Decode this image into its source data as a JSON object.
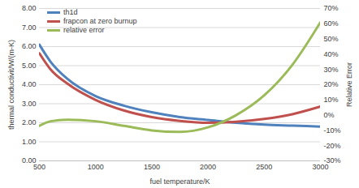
{
  "chart_data": {
    "type": "line",
    "x_label": "fuel temperature/K",
    "y_label": "thermal conductivit/W/(m-K)",
    "y2_label": "Relative Error",
    "x": [
      500,
      600,
      750,
      1000,
      1250,
      1500,
      1750,
      2000,
      2250,
      2500,
      2750,
      3000
    ],
    "series": [
      {
        "name": "th1d",
        "color": "#4f81bd",
        "values": [
          6.1,
          5.2,
          4.3,
          3.4,
          2.9,
          2.55,
          2.3,
          2.15,
          2.0,
          1.9,
          1.85,
          1.8
        ]
      },
      {
        "name": "frapcon at zero burnup",
        "color": "#c0504d",
        "values": [
          5.65,
          4.8,
          4.05,
          3.2,
          2.65,
          2.3,
          2.1,
          2.0,
          2.05,
          2.2,
          2.45,
          2.85
        ]
      },
      {
        "name": "relative error",
        "color": "#9bbb59",
        "axis": "y2",
        "values": [
          -7,
          -4,
          -3,
          -4,
          -7,
          -10,
          -11,
          -8,
          0,
          13,
          33,
          61
        ]
      }
    ],
    "xlim": [
      500,
      3000
    ],
    "xticks": [
      500,
      1000,
      1500,
      2000,
      2500,
      3000
    ],
    "ylim": [
      0,
      8
    ],
    "yticks": [
      {
        "value": 0,
        "label": "0.00"
      },
      {
        "value": 1,
        "label": "1.00"
      },
      {
        "value": 2,
        "label": "2.00"
      },
      {
        "value": 3,
        "label": "3.00"
      },
      {
        "value": 4,
        "label": "4.00"
      },
      {
        "value": 5,
        "label": "5.00"
      },
      {
        "value": 6,
        "label": "6.00"
      },
      {
        "value": 7,
        "label": "7.00"
      },
      {
        "value": 8,
        "label": "8.00"
      }
    ],
    "y2lim": [
      -30,
      70
    ],
    "y2ticks": [
      {
        "value": -30,
        "label": "-30%"
      },
      {
        "value": -20,
        "label": "-20%"
      },
      {
        "value": -10,
        "label": "-10%"
      },
      {
        "value": 0,
        "label": "0%"
      },
      {
        "value": 10,
        "label": "10%"
      },
      {
        "value": 20,
        "label": "20%"
      },
      {
        "value": 30,
        "label": "30%"
      },
      {
        "value": 40,
        "label": "40%"
      },
      {
        "value": 50,
        "label": "50%"
      },
      {
        "value": 60,
        "label": "60%"
      },
      {
        "value": 70,
        "label": "70%"
      }
    ],
    "grid": true,
    "legend": "top-left"
  }
}
